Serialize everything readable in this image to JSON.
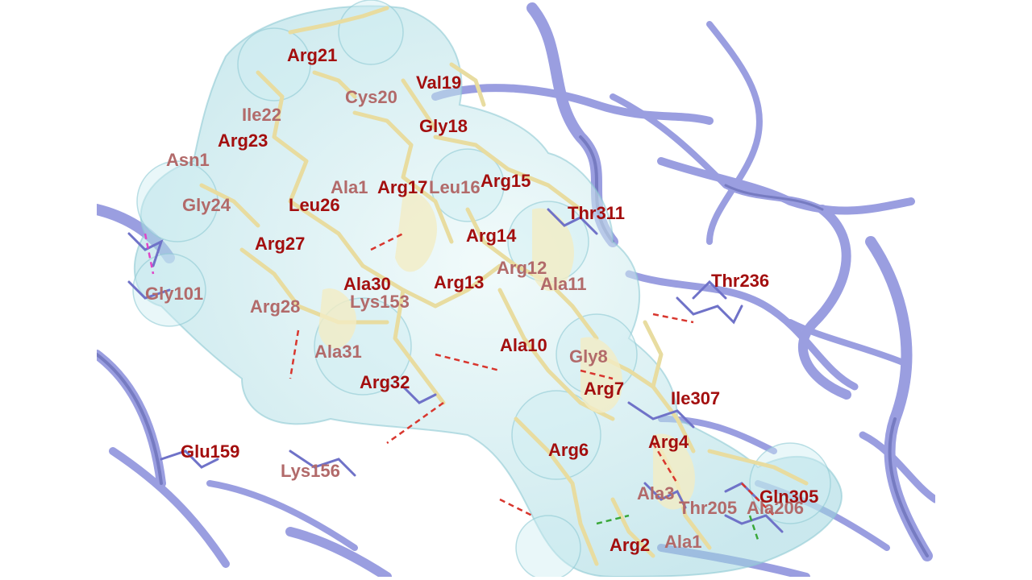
{
  "colors": {
    "ribbon": "#9a9ee0",
    "ribbon_dark": "#5a5fa8",
    "surface": "#bfe6ec",
    "peptide_stick": "#e8dca0",
    "receptor_stick": "#6f72c8",
    "hbond_red": "#d8362e",
    "hbond_pink": "#e044c8",
    "hbond_green": "#3aa83a",
    "label": "#a30e0e",
    "label_faded": "#b26a6a"
  },
  "labels": {
    "arg21": "Arg21",
    "val19": "Val19",
    "cys20": "Cys20",
    "ile22": "Ile22",
    "gly18": "Gly18",
    "arg23": "Arg23",
    "asn1": "Asn1",
    "ala1": "Ala1",
    "arg17": "Arg17",
    "leu16": "Leu16",
    "arg15": "Arg15",
    "gly24": "Gly24",
    "leu26": "Leu26",
    "thr311": "Thr311",
    "arg14": "Arg14",
    "arg27": "Arg27",
    "arg12": "Arg12",
    "ala30": "Ala30",
    "arg13": "Arg13",
    "ala11": "Ala11",
    "thr236": "Thr236",
    "gly101": "Gly101",
    "lys153": "Lys153",
    "arg28": "Arg28",
    "ala31": "Ala31",
    "ala10": "Ala10",
    "gly8": "Gly8",
    "arg32": "Arg32",
    "arg7": "Arg7",
    "ile307": "Ile307",
    "arg4": "Arg4",
    "arg6": "Arg6",
    "glu159": "Glu159",
    "lys156": "Lys156",
    "ala3": "Ala3",
    "thr205": "Thr205",
    "ala206": "Ala206",
    "gln305": "Gln305",
    "arg2": "Arg2",
    "ala1b": "Ala1"
  }
}
